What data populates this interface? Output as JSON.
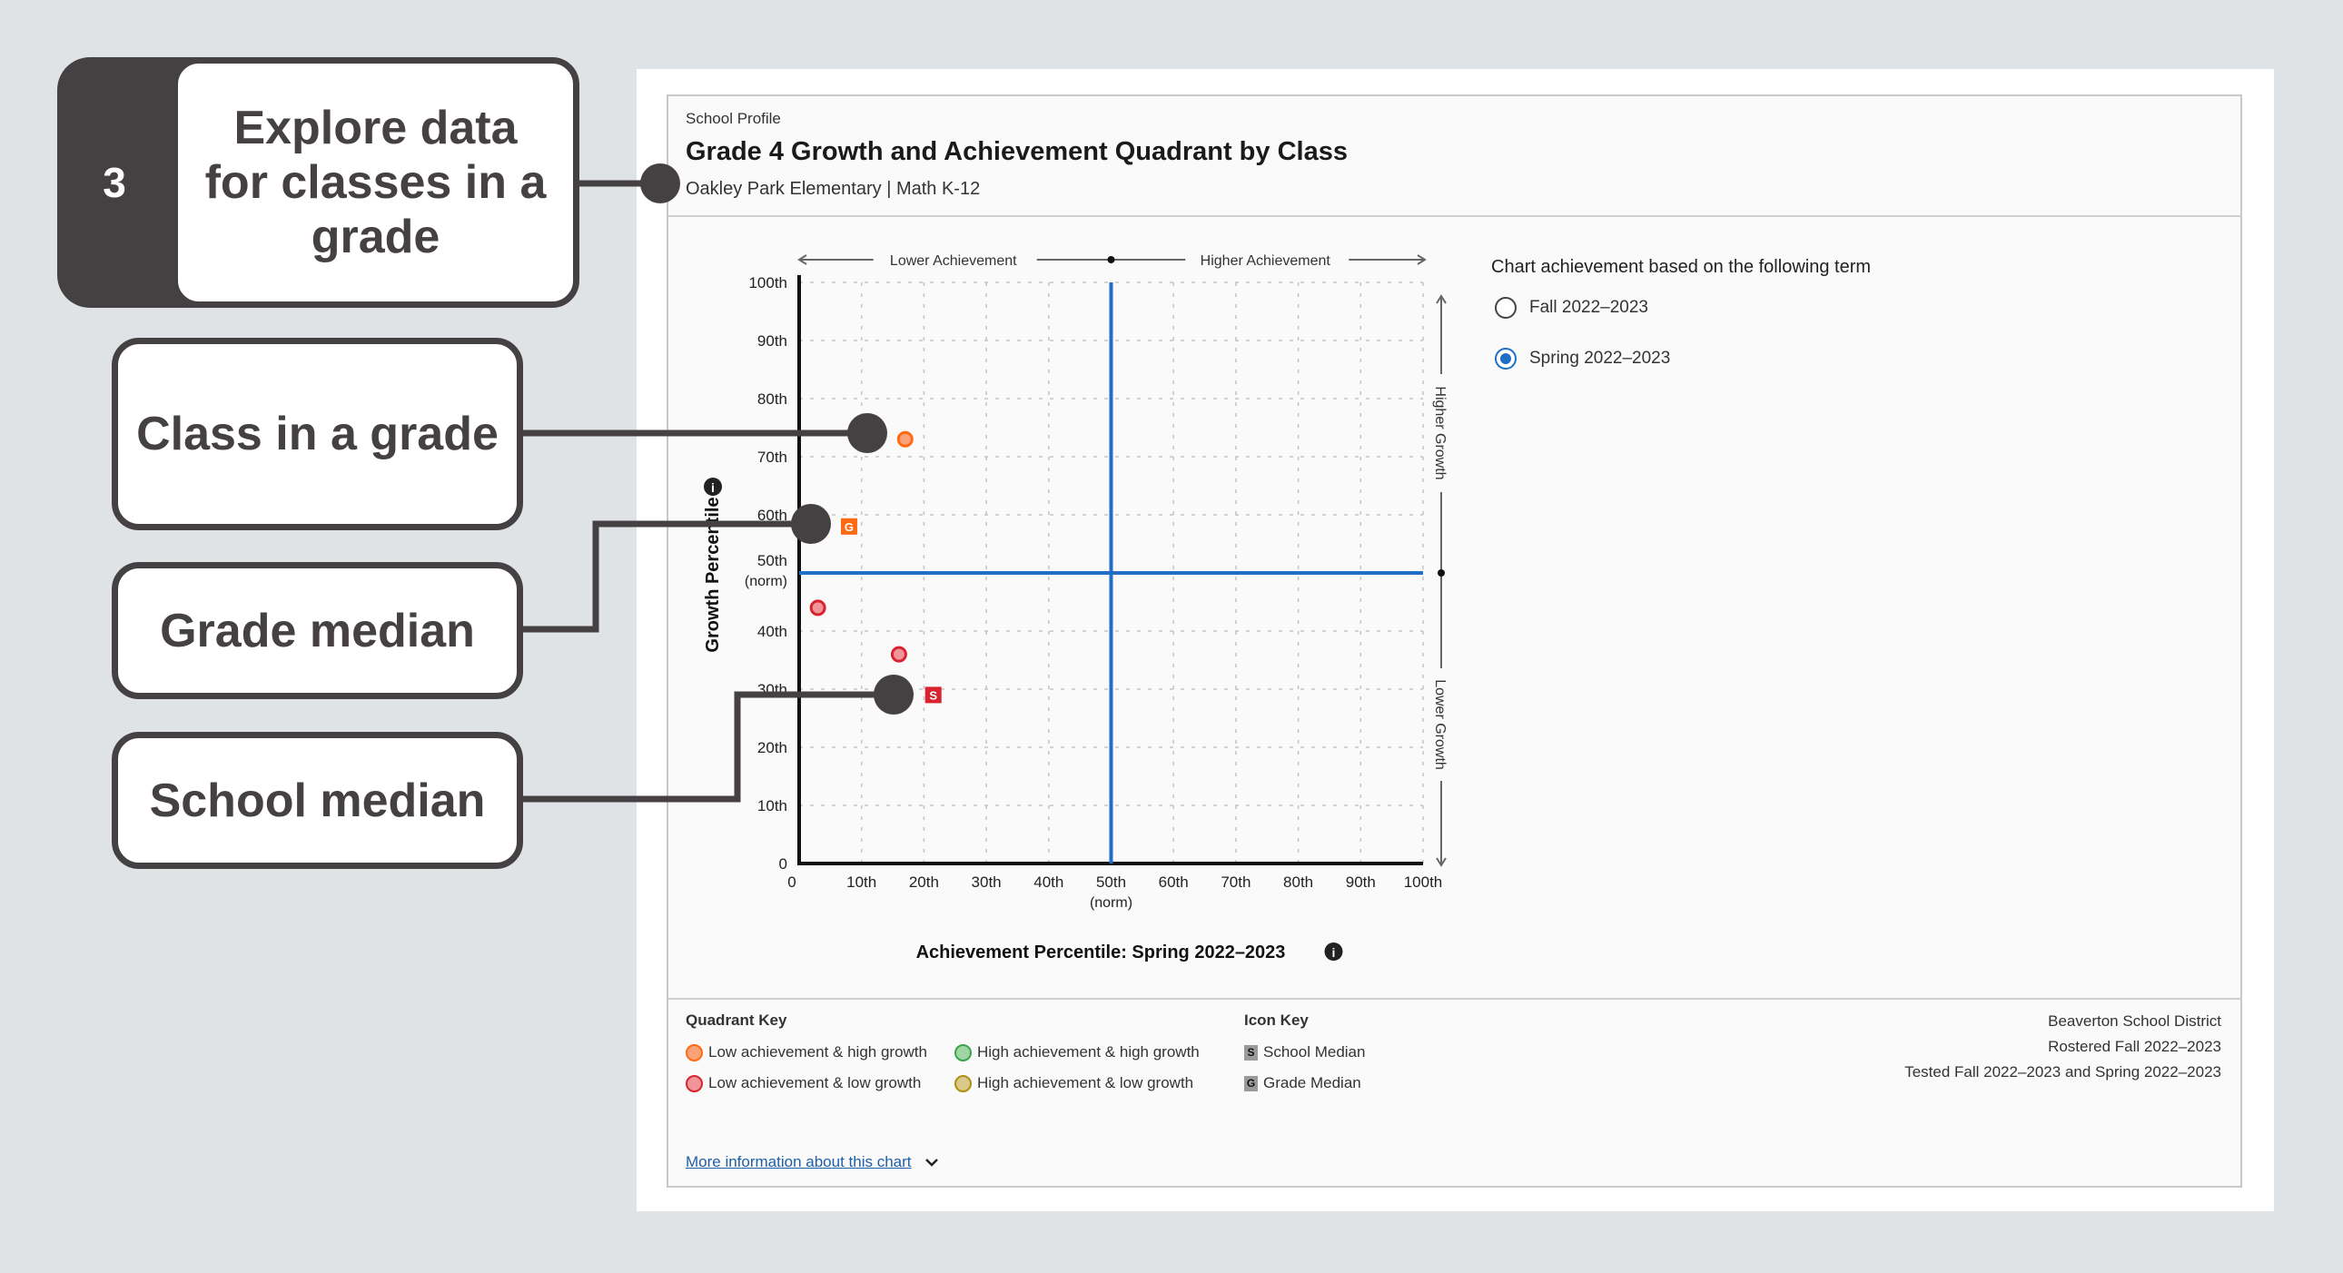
{
  "callouts": {
    "step_number": "3",
    "step_label": "Explore data for classes in a grade",
    "class_label": "Class in a grade",
    "grade_median_label": "Grade median",
    "school_median_label": "School median"
  },
  "header": {
    "eyebrow": "School Profile",
    "title": "Grade 4 Growth and Achievement Quadrant by Class",
    "subtitle": "Oakley Park Elementary | Math K-12"
  },
  "term_selector": {
    "label": "Chart achievement based on the following term",
    "options": [
      {
        "label": "Fall 2022–2023",
        "selected": false
      },
      {
        "label": "Spring 2022–2023",
        "selected": true
      }
    ]
  },
  "chart_data": {
    "type": "scatter",
    "xlabel": "Achievement Percentile: Spring 2022–2023",
    "ylabel": "Growth Percentile",
    "xlim": [
      0,
      100
    ],
    "ylim": [
      0,
      100
    ],
    "grid": true,
    "x_ticks": [
      "0",
      "10th",
      "20th",
      "30th",
      "40th",
      "50th",
      "60th",
      "70th",
      "80th",
      "90th",
      "100th"
    ],
    "y_ticks": [
      "0",
      "10th",
      "20th",
      "30th",
      "40th",
      "50th",
      "60th",
      "70th",
      "80th",
      "90th",
      "100th"
    ],
    "norm_label": "(norm)",
    "quadrant_lines": {
      "x": 50,
      "y": 50,
      "color": "#1f6fc5"
    },
    "quadrant_labels": {
      "left": "Lower Achievement",
      "right": "Higher Achievement",
      "top": "Higher Growth",
      "bottom": "Lower Growth"
    },
    "points": [
      {
        "kind": "class",
        "quadrant": "low-high",
        "x": 17,
        "y": 73
      },
      {
        "kind": "class",
        "quadrant": "low-low",
        "x": 3,
        "y": 44
      },
      {
        "kind": "class",
        "quadrant": "low-low",
        "x": 16,
        "y": 36
      },
      {
        "kind": "grade-median",
        "letter": "G",
        "x": 8,
        "y": 58,
        "color": "#ff6a13"
      },
      {
        "kind": "school-median",
        "letter": "S",
        "x": 21.5,
        "y": 29,
        "color": "#d9242f"
      }
    ]
  },
  "quadrant_key": {
    "title": "Quadrant Key",
    "items": [
      {
        "label": "Low achievement & high growth",
        "fill": "#f9a27a",
        "stroke": "#ff6a13"
      },
      {
        "label": "High achievement & high growth",
        "fill": "#9fd6a4",
        "stroke": "#3aa44a"
      },
      {
        "label": "Low achievement & low growth",
        "fill": "#f0959a",
        "stroke": "#d9242f"
      },
      {
        "label": "High achievement & low growth",
        "fill": "#d8c98a",
        "stroke": "#b08f10"
      }
    ]
  },
  "icon_key": {
    "title": "Icon Key",
    "items": [
      {
        "letter": "S",
        "label": "School Median"
      },
      {
        "letter": "G",
        "label": "Grade Median"
      }
    ]
  },
  "footer_info": {
    "district": "Beaverton School District",
    "rostered": "Rostered Fall 2022–2023",
    "tested": "Tested Fall 2022–2023 and Spring 2022–2023"
  },
  "more_info_link": "More information about this chart"
}
